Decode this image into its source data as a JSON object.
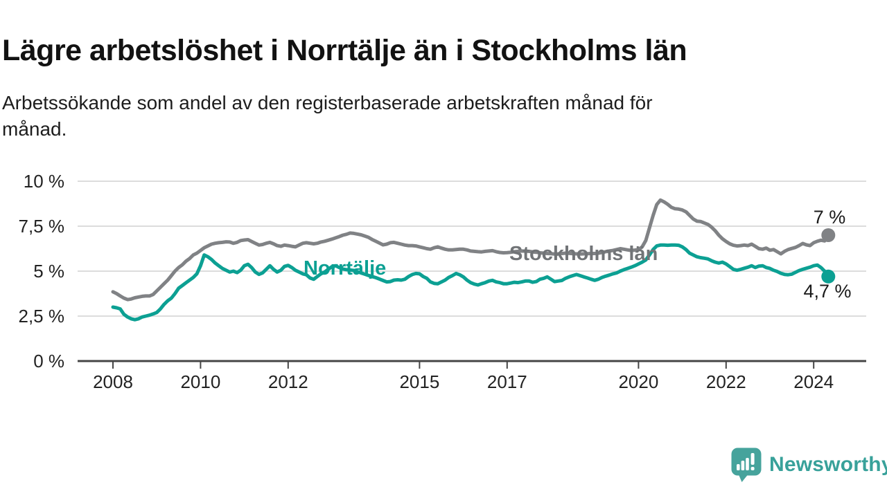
{
  "header": {
    "title": "Lägre arbetslöshet i Norrtälje än i Stockholms län",
    "subtitle_lines": [
      "Arbetssökande som andel av den registerbaserade arbetskraften månad för",
      "månad."
    ]
  },
  "footer": {
    "brand": "Newsworthy",
    "logo_icon": "speech-bubble-bar-chart-icon",
    "brand_color": "#38a19a"
  },
  "chart_data": {
    "type": "line",
    "title": "Lägre arbetslöshet i Norrtälje än i Stockholms län",
    "subtitle": "Arbetssökande som andel av den registerbaserade arbetskraften månad för månad.",
    "x_unit": "month",
    "x_start": "2008-01",
    "x_end": "2024-05",
    "ylim": [
      0,
      10
    ],
    "grid": true,
    "legend": "inline-labels",
    "axis_color": "#454545",
    "gridline_color": "#dcdcdc",
    "y_ticks": [
      {
        "value": 0,
        "label": "0 %"
      },
      {
        "value": 2.5,
        "label": "2,5 %"
      },
      {
        "value": 5,
        "label": "5 %"
      },
      {
        "value": 7.5,
        "label": "7,5 %"
      },
      {
        "value": 10,
        "label": "10 %"
      }
    ],
    "x_ticks": [
      {
        "year": 2008,
        "label": "2008"
      },
      {
        "year": 2010,
        "label": "2010"
      },
      {
        "year": 2012,
        "label": "2012"
      },
      {
        "year": 2015,
        "label": "2015"
      },
      {
        "year": 2017,
        "label": "2017"
      },
      {
        "year": 2020,
        "label": "2020"
      },
      {
        "year": 2022,
        "label": "2022"
      },
      {
        "year": 2024,
        "label": "2024"
      }
    ],
    "series": [
      {
        "id": "stockholms-lan",
        "name": "Stockholms län",
        "color": "#808285",
        "end_label": "7 %",
        "end_value": 7.0,
        "values": [
          3.85,
          3.75,
          3.62,
          3.5,
          3.42,
          3.45,
          3.52,
          3.56,
          3.6,
          3.62,
          3.62,
          3.7,
          3.9,
          4.1,
          4.3,
          4.5,
          4.75,
          5.0,
          5.2,
          5.35,
          5.55,
          5.7,
          5.9,
          6.0,
          6.15,
          6.3,
          6.4,
          6.5,
          6.55,
          6.58,
          6.6,
          6.63,
          6.62,
          6.55,
          6.6,
          6.7,
          6.73,
          6.75,
          6.65,
          6.55,
          6.45,
          6.48,
          6.55,
          6.6,
          6.52,
          6.42,
          6.38,
          6.45,
          6.42,
          6.38,
          6.35,
          6.45,
          6.55,
          6.58,
          6.55,
          6.52,
          6.55,
          6.62,
          6.66,
          6.72,
          6.78,
          6.85,
          6.92,
          7.0,
          7.05,
          7.12,
          7.1,
          7.06,
          7.02,
          6.95,
          6.88,
          6.76,
          6.66,
          6.56,
          6.46,
          6.5,
          6.58,
          6.6,
          6.55,
          6.5,
          6.45,
          6.42,
          6.42,
          6.4,
          6.35,
          6.3,
          6.25,
          6.22,
          6.3,
          6.35,
          6.28,
          6.22,
          6.18,
          6.18,
          6.2,
          6.22,
          6.22,
          6.18,
          6.12,
          6.1,
          6.08,
          6.07,
          6.1,
          6.12,
          6.14,
          6.08,
          6.04,
          6.02,
          6.03,
          6.05,
          6.08,
          6.1,
          6.12,
          6.11,
          6.1,
          6.07,
          6.05,
          6.02,
          6.0,
          5.98,
          5.97,
          5.95,
          5.96,
          5.98,
          6.0,
          5.99,
          5.97,
          5.96,
          5.95,
          5.96,
          5.97,
          5.98,
          5.98,
          6.0,
          6.04,
          6.08,
          6.12,
          6.15,
          6.2,
          6.25,
          6.22,
          6.18,
          6.15,
          6.17,
          6.2,
          6.35,
          6.7,
          7.4,
          8.1,
          8.7,
          8.95,
          8.85,
          8.72,
          8.55,
          8.47,
          8.45,
          8.4,
          8.3,
          8.1,
          7.9,
          7.78,
          7.76,
          7.68,
          7.6,
          7.45,
          7.25,
          7.0,
          6.8,
          6.65,
          6.52,
          6.44,
          6.4,
          6.42,
          6.45,
          6.42,
          6.5,
          6.38,
          6.25,
          6.22,
          6.28,
          6.16,
          6.2,
          6.08,
          5.96,
          6.1,
          6.2,
          6.26,
          6.32,
          6.42,
          6.54,
          6.46,
          6.42,
          6.58,
          6.66,
          6.72,
          6.68,
          7.0
        ]
      },
      {
        "id": "norrtalje",
        "name": "Norrtälje",
        "color": "#0ca093",
        "end_label": "4,7 %",
        "end_value": 4.7,
        "values": [
          3.0,
          2.96,
          2.9,
          2.6,
          2.45,
          2.35,
          2.3,
          2.35,
          2.45,
          2.5,
          2.55,
          2.62,
          2.7,
          2.9,
          3.15,
          3.35,
          3.5,
          3.75,
          4.05,
          4.2,
          4.35,
          4.5,
          4.65,
          4.85,
          5.3,
          5.9,
          5.8,
          5.65,
          5.45,
          5.3,
          5.15,
          5.05,
          4.95,
          5.0,
          4.92,
          5.05,
          5.3,
          5.38,
          5.2,
          4.95,
          4.82,
          4.9,
          5.1,
          5.3,
          5.1,
          4.95,
          5.05,
          5.26,
          5.32,
          5.2,
          5.05,
          4.95,
          4.85,
          4.8,
          4.62,
          4.55,
          4.7,
          4.85,
          4.95,
          5.1,
          5.25,
          5.3,
          5.2,
          5.12,
          5.08,
          5.06,
          5.04,
          4.97,
          4.9,
          4.83,
          4.76,
          4.7,
          4.64,
          4.56,
          4.48,
          4.4,
          4.42,
          4.5,
          4.52,
          4.5,
          4.55,
          4.7,
          4.81,
          4.87,
          4.85,
          4.7,
          4.6,
          4.4,
          4.32,
          4.3,
          4.4,
          4.5,
          4.65,
          4.75,
          4.87,
          4.8,
          4.68,
          4.5,
          4.36,
          4.28,
          4.23,
          4.3,
          4.36,
          4.45,
          4.49,
          4.4,
          4.36,
          4.3,
          4.3,
          4.34,
          4.38,
          4.36,
          4.4,
          4.45,
          4.45,
          4.38,
          4.42,
          4.55,
          4.6,
          4.68,
          4.55,
          4.42,
          4.45,
          4.48,
          4.6,
          4.68,
          4.75,
          4.81,
          4.75,
          4.68,
          4.62,
          4.55,
          4.49,
          4.55,
          4.65,
          4.72,
          4.78,
          4.85,
          4.9,
          5.0,
          5.08,
          5.15,
          5.22,
          5.3,
          5.4,
          5.5,
          5.62,
          5.9,
          6.2,
          6.4,
          6.45,
          6.45,
          6.44,
          6.45,
          6.45,
          6.44,
          6.35,
          6.2,
          6.0,
          5.9,
          5.8,
          5.75,
          5.72,
          5.68,
          5.58,
          5.5,
          5.45,
          5.5,
          5.4,
          5.25,
          5.1,
          5.05,
          5.1,
          5.16,
          5.22,
          5.3,
          5.2,
          5.28,
          5.3,
          5.2,
          5.15,
          5.05,
          4.98,
          4.88,
          4.82,
          4.8,
          4.83,
          4.93,
          5.03,
          5.1,
          5.16,
          5.22,
          5.3,
          5.34,
          5.2,
          5.0,
          4.7
        ]
      }
    ]
  }
}
